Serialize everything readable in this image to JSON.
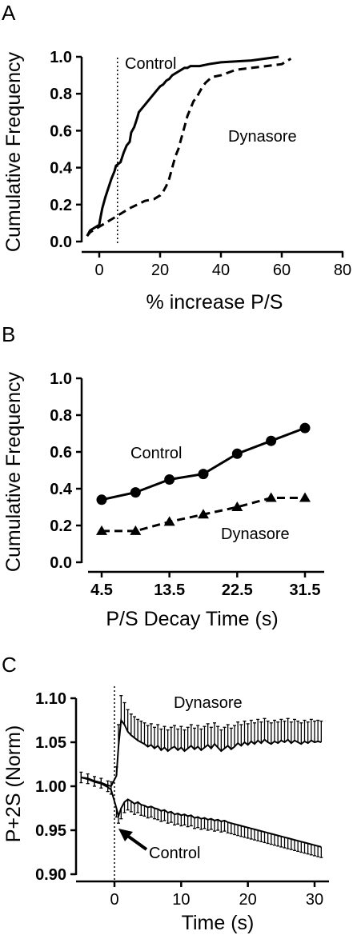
{
  "chart_data": [
    {
      "panel": "A",
      "type": "line",
      "xlabel": "% increase P/S",
      "ylabel": "Cumulative Frequency",
      "xlim": [
        -5,
        80
      ],
      "ylim": [
        0,
        1.0
      ],
      "xticks": [
        0,
        20,
        40,
        60,
        80
      ],
      "yticks": [
        0.0,
        0.2,
        0.4,
        0.6,
        0.8,
        1.0
      ],
      "x_tick_labels": [
        "0",
        "20",
        "40",
        "60",
        "80"
      ],
      "y_tick_labels": [
        "0.0",
        "0.2",
        "0.4",
        "0.6",
        "0.8",
        "1.0"
      ],
      "reference_line_x": 6,
      "series": [
        {
          "name": "Control",
          "style": "solid",
          "x": [
            -4,
            -3,
            0,
            0.3,
            1,
            2,
            3,
            4,
            5,
            5.5,
            7,
            8,
            9,
            10,
            10.5,
            11.5,
            12.5,
            13,
            14,
            15,
            16,
            17,
            18,
            19,
            20,
            21,
            22,
            23,
            24,
            25,
            26,
            27,
            28,
            29,
            30,
            31,
            33,
            36,
            40,
            50,
            59
          ],
          "y": [
            0.03,
            0.06,
            0.09,
            0.12,
            0.18,
            0.24,
            0.29,
            0.34,
            0.38,
            0.41,
            0.43,
            0.48,
            0.52,
            0.54,
            0.59,
            0.62,
            0.67,
            0.7,
            0.72,
            0.74,
            0.76,
            0.78,
            0.8,
            0.82,
            0.84,
            0.85,
            0.87,
            0.88,
            0.9,
            0.91,
            0.92,
            0.93,
            0.94,
            0.94,
            0.95,
            0.95,
            0.95,
            0.96,
            0.97,
            0.98,
            1.0
          ]
        },
        {
          "name": "Dynasore",
          "style": "dashed",
          "x": [
            -4,
            -3,
            0,
            5,
            10,
            15,
            18,
            20,
            21,
            22,
            23,
            24,
            25,
            26,
            27,
            28,
            29,
            30,
            31,
            32,
            33,
            34,
            35,
            37,
            40,
            45,
            50,
            55,
            60,
            63
          ],
          "y": [
            0.03,
            0.05,
            0.08,
            0.13,
            0.18,
            0.22,
            0.23,
            0.25,
            0.27,
            0.3,
            0.34,
            0.4,
            0.46,
            0.5,
            0.56,
            0.62,
            0.68,
            0.72,
            0.76,
            0.78,
            0.81,
            0.84,
            0.86,
            0.89,
            0.9,
            0.93,
            0.94,
            0.95,
            0.96,
            0.99
          ]
        }
      ]
    },
    {
      "panel": "B",
      "type": "line",
      "xlabel": "P/S Decay Time (s)",
      "ylabel": "Cumulative Frequency",
      "xlim": [
        0,
        35
      ],
      "ylim": [
        0,
        1.0
      ],
      "x_tick_values": [
        4.5,
        13.5,
        22.5,
        31.5
      ],
      "x_tick_labels": [
        "4.5",
        "13.5",
        "22.5",
        "31.5"
      ],
      "yticks": [
        0.0,
        0.2,
        0.4,
        0.6,
        0.8,
        1.0
      ],
      "y_tick_labels": [
        "0.0",
        "0.2",
        "0.4",
        "0.6",
        "0.8",
        "1.0"
      ],
      "series": [
        {
          "name": "Control",
          "style": "solid",
          "marker": "circle",
          "x": [
            4.5,
            9,
            13.5,
            18,
            22.5,
            27,
            31.5
          ],
          "y": [
            0.34,
            0.38,
            0.45,
            0.48,
            0.59,
            0.66,
            0.73
          ]
        },
        {
          "name": "Dynasore",
          "style": "dashed",
          "marker": "triangle",
          "x": [
            4.5,
            9,
            13.5,
            18,
            22.5,
            27,
            31.5
          ],
          "y": [
            0.17,
            0.17,
            0.22,
            0.26,
            0.3,
            0.35,
            0.35
          ]
        }
      ]
    },
    {
      "panel": "C",
      "type": "line",
      "xlabel": "Time (s)",
      "ylabel": "P+2S (Norm)",
      "xlim": [
        -5.5,
        33
      ],
      "ylim": [
        0.9,
        1.1
      ],
      "xticks": [
        0,
        10,
        20,
        30
      ],
      "x_tick_labels": [
        "0",
        "10",
        "20",
        "30"
      ],
      "yticks": [
        0.9,
        0.95,
        1.0,
        1.05,
        1.1
      ],
      "y_tick_labels": [
        "0.90",
        "0.95",
        "1.00",
        "1.05",
        "1.10"
      ],
      "reference_line_x": 0,
      "annotation": "Control",
      "series": [
        {
          "name": "Dynasore",
          "style": "solid",
          "error_bars": true,
          "points": [
            [
              -5,
              1.01,
              0.006
            ],
            [
              -4,
              1.009,
              0.005
            ],
            [
              -3,
              1.006,
              0.005
            ],
            [
              -2,
              1.004,
              0.005
            ],
            [
              -1,
              1.001,
              0.005
            ],
            [
              -0.5,
              1.0,
              0.005
            ],
            [
              0.3,
              1.012,
              0.01
            ],
            [
              0.6,
              1.045,
              0.025
            ],
            [
              1,
              1.075,
              0.028
            ],
            [
              1.5,
              1.07,
              0.025
            ],
            [
              2,
              1.062,
              0.025
            ],
            [
              2.5,
              1.058,
              0.024
            ],
            [
              3,
              1.055,
              0.024
            ],
            [
              3.5,
              1.052,
              0.024
            ],
            [
              4,
              1.05,
              0.024
            ],
            [
              4.5,
              1.048,
              0.024
            ],
            [
              5,
              1.045,
              0.024
            ],
            [
              5.5,
              1.047,
              0.024
            ],
            [
              6,
              1.043,
              0.024
            ],
            [
              6.5,
              1.046,
              0.024
            ],
            [
              7,
              1.041,
              0.024
            ],
            [
              7.5,
              1.044,
              0.024
            ],
            [
              8,
              1.04,
              0.024
            ],
            [
              8.5,
              1.043,
              0.024
            ],
            [
              9,
              1.045,
              0.024
            ],
            [
              9.5,
              1.041,
              0.024
            ],
            [
              10,
              1.044,
              0.024
            ],
            [
              10.5,
              1.04,
              0.024
            ],
            [
              11,
              1.043,
              0.024
            ],
            [
              11.5,
              1.046,
              0.024
            ],
            [
              12,
              1.042,
              0.024
            ],
            [
              12.5,
              1.045,
              0.024
            ],
            [
              13,
              1.041,
              0.024
            ],
            [
              13.5,
              1.044,
              0.024
            ],
            [
              14,
              1.047,
              0.024
            ],
            [
              14.5,
              1.043,
              0.024
            ],
            [
              15,
              1.048,
              0.024
            ],
            [
              15.5,
              1.044,
              0.024
            ],
            [
              16,
              1.04,
              0.024
            ],
            [
              16.5,
              1.043,
              0.024
            ],
            [
              17,
              1.046,
              0.024
            ],
            [
              17.5,
              1.042,
              0.024
            ],
            [
              18,
              1.045,
              0.024
            ],
            [
              18.5,
              1.049,
              0.024
            ],
            [
              19,
              1.046,
              0.024
            ],
            [
              19.5,
              1.05,
              0.024
            ],
            [
              20,
              1.047,
              0.024
            ],
            [
              20.5,
              1.051,
              0.024
            ],
            [
              21,
              1.048,
              0.024
            ],
            [
              21.5,
              1.052,
              0.024
            ],
            [
              22,
              1.049,
              0.024
            ],
            [
              22.5,
              1.053,
              0.024
            ],
            [
              23,
              1.05,
              0.024
            ],
            [
              23.5,
              1.048,
              0.024
            ],
            [
              24,
              1.051,
              0.024
            ],
            [
              24.5,
              1.049,
              0.024
            ],
            [
              25,
              1.052,
              0.024
            ],
            [
              25.5,
              1.05,
              0.024
            ],
            [
              26,
              1.053,
              0.024
            ],
            [
              26.5,
              1.049,
              0.024
            ],
            [
              27,
              1.052,
              0.024
            ],
            [
              27.5,
              1.05,
              0.024
            ],
            [
              28,
              1.048,
              0.024
            ],
            [
              28.5,
              1.051,
              0.024
            ],
            [
              29,
              1.049,
              0.024
            ],
            [
              29.5,
              1.052,
              0.024
            ],
            [
              30,
              1.05,
              0.024
            ],
            [
              30.5,
              1.051,
              0.024
            ],
            [
              31,
              1.05,
              0.024
            ]
          ]
        },
        {
          "name": "Control",
          "style": "solid",
          "error_bars": true,
          "points": [
            [
              -5,
              1.01,
              0.006
            ],
            [
              -4,
              1.008,
              0.005
            ],
            [
              -3,
              1.005,
              0.005
            ],
            [
              -2,
              1.003,
              0.005
            ],
            [
              -1,
              0.999,
              0.005
            ],
            [
              -0.5,
              0.996,
              0.005
            ],
            [
              0.3,
              0.975,
              0.01
            ],
            [
              0.6,
              0.966,
              0.008
            ],
            [
              1,
              0.975,
              0.012
            ],
            [
              1.5,
              0.982,
              0.012
            ],
            [
              2,
              0.985,
              0.012
            ],
            [
              2.5,
              0.983,
              0.012
            ],
            [
              3,
              0.98,
              0.012
            ],
            [
              3.5,
              0.982,
              0.012
            ],
            [
              4,
              0.979,
              0.012
            ],
            [
              4.5,
              0.978,
              0.012
            ],
            [
              5,
              0.976,
              0.012
            ],
            [
              5.5,
              0.977,
              0.012
            ],
            [
              6,
              0.975,
              0.012
            ],
            [
              6.5,
              0.974,
              0.012
            ],
            [
              7,
              0.972,
              0.012
            ],
            [
              7.5,
              0.973,
              0.012
            ],
            [
              8,
              0.97,
              0.012
            ],
            [
              8.5,
              0.971,
              0.012
            ],
            [
              9,
              0.968,
              0.012
            ],
            [
              9.5,
              0.969,
              0.012
            ],
            [
              10,
              0.967,
              0.012
            ],
            [
              10.5,
              0.968,
              0.012
            ],
            [
              11,
              0.966,
              0.012
            ],
            [
              11.5,
              0.967,
              0.012
            ],
            [
              12,
              0.964,
              0.012
            ],
            [
              12.5,
              0.965,
              0.012
            ],
            [
              13,
              0.963,
              0.012
            ],
            [
              13.5,
              0.964,
              0.012
            ],
            [
              14,
              0.962,
              0.012
            ],
            [
              14.5,
              0.963,
              0.012
            ],
            [
              15,
              0.961,
              0.012
            ],
            [
              15.5,
              0.962,
              0.012
            ],
            [
              16,
              0.96,
              0.012
            ],
            [
              16.5,
              0.961,
              0.012
            ],
            [
              17,
              0.959,
              0.012
            ],
            [
              17.5,
              0.958,
              0.012
            ],
            [
              18,
              0.957,
              0.012
            ],
            [
              18.5,
              0.956,
              0.012
            ],
            [
              19,
              0.955,
              0.012
            ],
            [
              19.5,
              0.954,
              0.012
            ],
            [
              20,
              0.953,
              0.012
            ],
            [
              20.5,
              0.952,
              0.012
            ],
            [
              21,
              0.951,
              0.012
            ],
            [
              21.5,
              0.95,
              0.012
            ],
            [
              22,
              0.949,
              0.012
            ],
            [
              22.5,
              0.948,
              0.012
            ],
            [
              23,
              0.947,
              0.012
            ],
            [
              23.5,
              0.946,
              0.012
            ],
            [
              24,
              0.945,
              0.012
            ],
            [
              24.5,
              0.944,
              0.012
            ],
            [
              25,
              0.943,
              0.012
            ],
            [
              25.5,
              0.942,
              0.012
            ],
            [
              26,
              0.941,
              0.012
            ],
            [
              26.5,
              0.94,
              0.012
            ],
            [
              27,
              0.939,
              0.012
            ],
            [
              27.5,
              0.938,
              0.012
            ],
            [
              28,
              0.937,
              0.012
            ],
            [
              28.5,
              0.936,
              0.012
            ],
            [
              29,
              0.935,
              0.012
            ],
            [
              29.5,
              0.934,
              0.012
            ],
            [
              30,
              0.933,
              0.012
            ],
            [
              30.5,
              0.932,
              0.012
            ],
            [
              31,
              0.931,
              0.012
            ]
          ]
        }
      ]
    }
  ]
}
